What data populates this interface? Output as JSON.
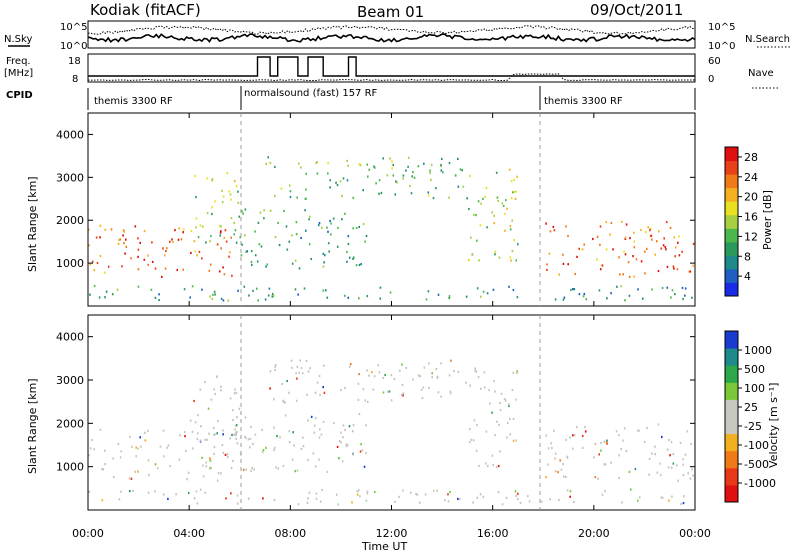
{
  "header": {
    "station": "Kodiak (fitACF)",
    "beam": "Beam 01",
    "date": "09/Oct/2011"
  },
  "summary_panels": {
    "nsky_label": "N.Sky",
    "nsky_ticks": [
      "10^5",
      "10^0"
    ],
    "nsearch_label": "N.Search",
    "nsearch_ticks": [
      "10^5",
      "10^0"
    ],
    "freq_label_line1": "Freq.",
    "freq_label_line2": "[MHz]",
    "freq_ticks": [
      "18",
      "8"
    ],
    "nave_label": "Nave",
    "nave_ticks": [
      "60",
      "0"
    ],
    "cpid_label": "CPID",
    "cpid_segments": [
      {
        "label": "themis 3300 RF",
        "start_h": 0,
        "end_h": 6
      },
      {
        "label": "normalsound (fast) 157 RF",
        "start_h": 6,
        "end_h": 18
      },
      {
        "label": "themis 3300 RF",
        "start_h": 18,
        "end_h": 24
      }
    ]
  },
  "chart_data": [
    {
      "type": "heatmap",
      "title": "",
      "xlabel": "Time UT",
      "ylabel": "Slant Range [km]",
      "x_ticks": [
        "00:00",
        "04:00",
        "08:00",
        "12:00",
        "16:00",
        "20:00",
        "00:00"
      ],
      "xlim_hours": [
        0,
        24
      ],
      "ylim": [
        0,
        4500
      ],
      "y_ticks": [
        1000,
        2000,
        3000,
        4000
      ],
      "colorbar": {
        "label": "Power [dB]",
        "ticks": [
          4,
          8,
          12,
          16,
          20,
          24,
          28
        ],
        "range": [
          0,
          30
        ],
        "colors": [
          "#1a2be8",
          "#1f5fc4",
          "#1d8a8a",
          "#2a9a5a",
          "#4cb84c",
          "#a6d040",
          "#e8e020",
          "#f4b020",
          "#f07a18",
          "#e84018",
          "#e01010"
        ]
      },
      "echo_regions": [
        {
          "name": "near-range scatter 00-06",
          "t": [
            0,
            5.9
          ],
          "range_km": [
            700,
            1900
          ],
          "value": 25
        },
        {
          "name": "oblique band rising 04-06",
          "t": [
            4.0,
            6.0
          ],
          "range_km": [
            1500,
            3200
          ],
          "value": 14
        },
        {
          "name": "far-range band 07-15",
          "t": [
            7.0,
            15.0
          ],
          "range_km": [
            2500,
            3500
          ],
          "value": 12
        },
        {
          "name": "mid-range patches 06-11",
          "t": [
            6.0,
            11.0
          ],
          "range_km": [
            900,
            2300
          ],
          "value": 10
        },
        {
          "name": "echo 15-17",
          "t": [
            15.0,
            17.0
          ],
          "range_km": [
            1000,
            3300
          ],
          "value": 16
        },
        {
          "name": "near-range scatter 18-24",
          "t": [
            18.0,
            24.0
          ],
          "range_km": [
            700,
            2000
          ],
          "value": 25
        },
        {
          "name": "low-range clutter",
          "t": [
            0,
            24
          ],
          "range_km": [
            150,
            500
          ],
          "value": 8
        }
      ]
    },
    {
      "type": "heatmap",
      "title": "",
      "xlabel": "Time UT",
      "ylabel": "Slant Range [km]",
      "x_ticks": [
        "00:00",
        "04:00",
        "08:00",
        "12:00",
        "16:00",
        "20:00",
        "00:00"
      ],
      "xlim_hours": [
        0,
        24
      ],
      "ylim": [
        0,
        4500
      ],
      "y_ticks": [
        1000,
        2000,
        3000,
        4000
      ],
      "colorbar": {
        "label": "Velocity [m s⁻¹]",
        "ticks": [
          "1000",
          "500",
          "100",
          "25",
          "-25",
          "-100",
          "-500",
          "-1000"
        ],
        "colors": [
          "#1a3bd0",
          "#1f8a8a",
          "#2aa84a",
          "#78c838",
          "#c8c8c0",
          "#c8c8c0",
          "#f0b020",
          "#f07a18",
          "#e83818",
          "#e01010"
        ]
      },
      "ground_scatter_color": "#c4c4bc"
    }
  ]
}
